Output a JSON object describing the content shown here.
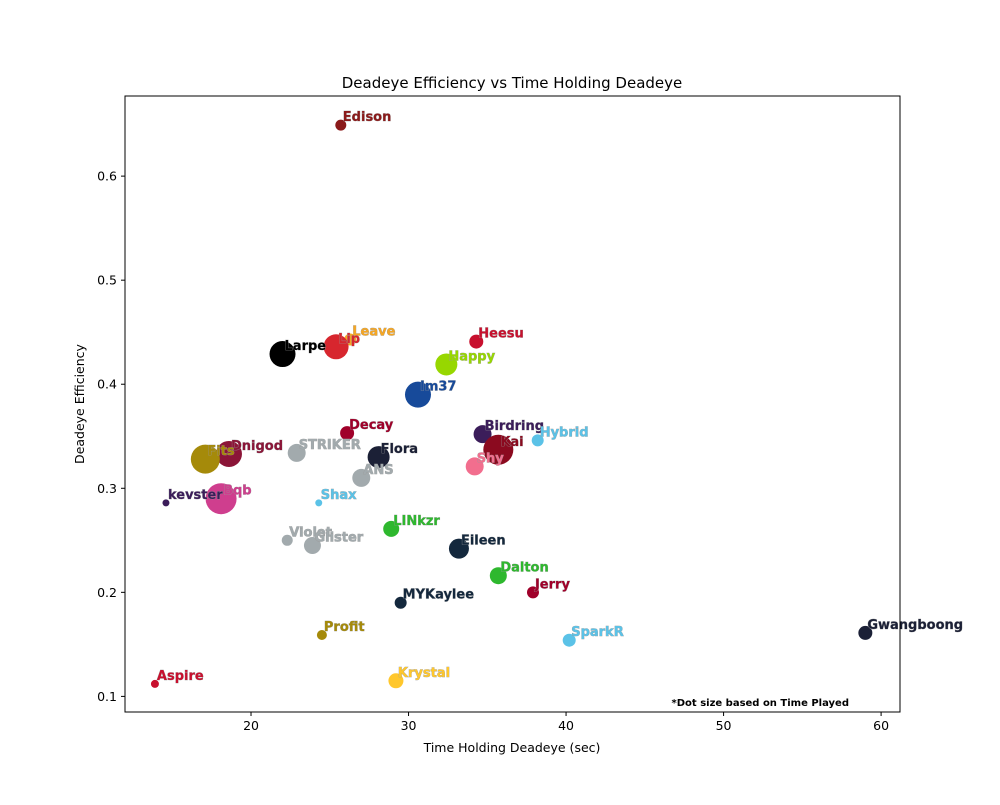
{
  "chart_data": {
    "type": "scatter",
    "title": "Deadeye Efficiency vs Time Holding Deadeye",
    "xlabel": "Time Holding Deadeye (sec)",
    "ylabel": "Deadeye Efficiency",
    "xlim": [
      12,
      61.2
    ],
    "ylim": [
      0.085,
      0.677
    ],
    "xticks": [
      20,
      30,
      40,
      50,
      60
    ],
    "yticks": [
      0.1,
      0.2,
      0.3,
      0.4,
      0.5,
      0.6
    ],
    "grid": false,
    "footnote": "*Dot size based on Time Played",
    "points": [
      {
        "name": "Edison",
        "x": 25.7,
        "y": 0.649,
        "size": 11,
        "color": "#8b1a1a"
      },
      {
        "name": "Heesu",
        "x": 34.3,
        "y": 0.441,
        "size": 14,
        "color": "#c8102e"
      },
      {
        "name": "Leave",
        "x": 26.3,
        "y": 0.443,
        "size": 12,
        "color": "#f5a623"
      },
      {
        "name": "Lip",
        "x": 25.4,
        "y": 0.436,
        "size": 25,
        "color": "#d7262e"
      },
      {
        "name": "Larpe",
        "x": 22.0,
        "y": 0.429,
        "size": 26,
        "color": "#000000"
      },
      {
        "name": "Happy",
        "x": 32.4,
        "y": 0.419,
        "size": 22,
        "color": "#97d700"
      },
      {
        "name": "Im37",
        "x": 30.6,
        "y": 0.39,
        "size": 26,
        "color": "#174a9a"
      },
      {
        "name": "Birdring",
        "x": 34.7,
        "y": 0.352,
        "size": 18,
        "color": "#3b1d5a"
      },
      {
        "name": "Decay",
        "x": 26.1,
        "y": 0.353,
        "size": 14,
        "color": "#a0002a"
      },
      {
        "name": "Hybrid",
        "x": 38.2,
        "y": 0.346,
        "size": 12,
        "color": "#5bc2e7"
      },
      {
        "name": "Kai",
        "x": 35.7,
        "y": 0.337,
        "size": 30,
        "color": "#8b0a1f"
      },
      {
        "name": "STRIKER",
        "x": 22.9,
        "y": 0.334,
        "size": 18,
        "color": "#a2aaad"
      },
      {
        "name": "Dnigod",
        "x": 18.6,
        "y": 0.333,
        "size": 26,
        "color": "#8b1538"
      },
      {
        "name": "Fits",
        "x": 17.1,
        "y": 0.328,
        "size": 29,
        "color": "#a58a0a"
      },
      {
        "name": "Flora",
        "x": 28.1,
        "y": 0.33,
        "size": 22,
        "color": "#1b2036"
      },
      {
        "name": "Shy",
        "x": 34.2,
        "y": 0.321,
        "size": 18,
        "color": "#f26e8e"
      },
      {
        "name": "ANS",
        "x": 27.0,
        "y": 0.31,
        "size": 18,
        "color": "#a2aaad"
      },
      {
        "name": "Bqb",
        "x": 18.1,
        "y": 0.29,
        "size": 31,
        "color": "#cf3e8e"
      },
      {
        "name": "kevster",
        "x": 14.6,
        "y": 0.286,
        "size": 7,
        "color": "#3b1d5a"
      },
      {
        "name": "Shax",
        "x": 24.3,
        "y": 0.286,
        "size": 7,
        "color": "#5bc2e7"
      },
      {
        "name": "LINkzr",
        "x": 28.9,
        "y": 0.261,
        "size": 16,
        "color": "#2eb82e"
      },
      {
        "name": "Violet",
        "x": 22.3,
        "y": 0.25,
        "size": 11,
        "color": "#a2aaad"
      },
      {
        "name": "Glister",
        "x": 23.9,
        "y": 0.245,
        "size": 17,
        "color": "#a2aaad"
      },
      {
        "name": "Eileen",
        "x": 33.2,
        "y": 0.242,
        "size": 20,
        "color": "#14283d"
      },
      {
        "name": "Dalton",
        "x": 35.7,
        "y": 0.216,
        "size": 17,
        "color": "#2eb82e"
      },
      {
        "name": "Jerry",
        "x": 37.9,
        "y": 0.2,
        "size": 12,
        "color": "#a0002a"
      },
      {
        "name": "MYKaylee",
        "x": 29.5,
        "y": 0.19,
        "size": 12,
        "color": "#14283d"
      },
      {
        "name": "Gwangboong",
        "x": 59.0,
        "y": 0.161,
        "size": 14,
        "color": "#1b2036"
      },
      {
        "name": "Profit",
        "x": 24.5,
        "y": 0.159,
        "size": 10,
        "color": "#a58a0a"
      },
      {
        "name": "SparkR",
        "x": 40.2,
        "y": 0.154,
        "size": 13,
        "color": "#5bc2e7"
      },
      {
        "name": "Krystal",
        "x": 29.2,
        "y": 0.115,
        "size": 15,
        "color": "#ffc72c"
      },
      {
        "name": "Aspire",
        "x": 13.9,
        "y": 0.112,
        "size": 8,
        "color": "#c8102e"
      }
    ]
  }
}
